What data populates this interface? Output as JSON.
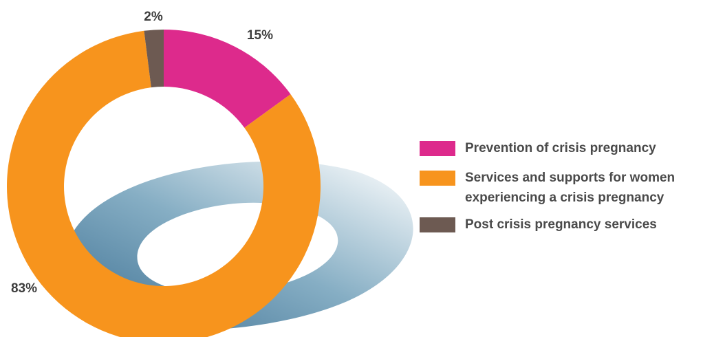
{
  "chart_data": {
    "type": "donut",
    "categories": [
      "Prevention of crisis pregnancy",
      "Services and supports for women experiencing a crisis pregnancy",
      "Post crisis pregnancy services"
    ],
    "values": [
      15,
      83,
      2
    ],
    "value_labels": [
      "15%",
      "83%",
      "2%"
    ],
    "colors": [
      "#dd2a8c",
      "#f7941d",
      "#6d5a52"
    ],
    "legend": "right"
  }
}
